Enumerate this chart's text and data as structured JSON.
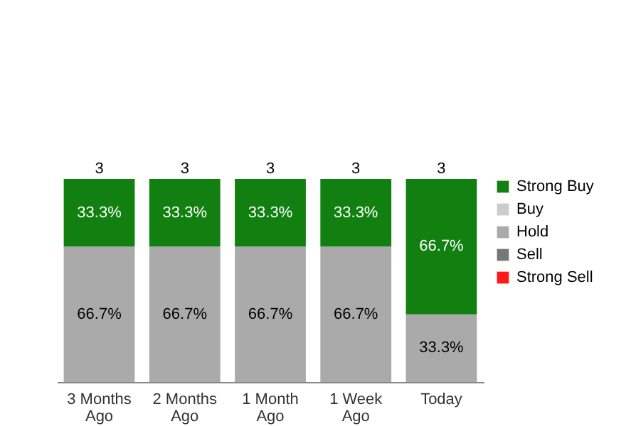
{
  "chart_data": {
    "type": "bar",
    "stacked": true,
    "legend": "right",
    "categories": [
      "3 Months Ago",
      "2 Months Ago",
      "1 Month Ago",
      "1 Week Ago",
      "Today"
    ],
    "series": [
      {
        "name": "Strong Sell",
        "color": "#ff1a1a",
        "values": [
          null,
          null,
          null,
          null,
          null
        ]
      },
      {
        "name": "Sell",
        "color": "#777777",
        "values": [
          null,
          null,
          null,
          null,
          null
        ]
      },
      {
        "name": "Hold",
        "color": "#aaaaaa",
        "values": [
          66.7,
          66.7,
          66.7,
          66.7,
          33.3
        ],
        "value_labels": [
          "66.7%",
          "66.7%",
          "66.7%",
          "66.7%",
          "33.3%"
        ]
      },
      {
        "name": "Buy",
        "color": "#cccccc",
        "values": [
          null,
          null,
          null,
          null,
          null
        ]
      },
      {
        "name": "Strong Buy",
        "color": "#118011",
        "values": [
          33.3,
          33.3,
          33.3,
          33.3,
          66.7
        ],
        "value_labels": [
          "33.3%",
          "33.3%",
          "33.3%",
          "33.3%",
          "66.7%"
        ]
      }
    ],
    "annotations": [
      {
        "text": "3",
        "x": "3 Months Ago",
        "y": 100
      },
      {
        "text": "3",
        "x": "2 Months Ago",
        "y": 100
      },
      {
        "text": "3",
        "x": "1 Month Ago",
        "y": 100
      },
      {
        "text": "3",
        "x": "1 Week Ago",
        "y": 100
      },
      {
        "text": "3",
        "x": "Today",
        "y": 100
      }
    ]
  }
}
